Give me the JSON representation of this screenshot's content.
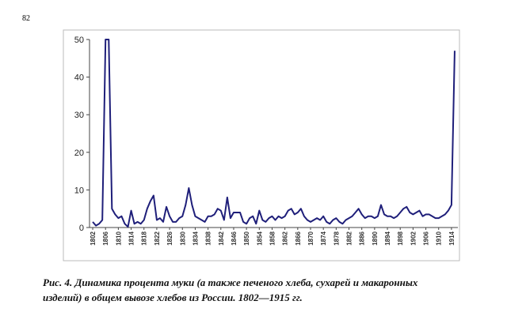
{
  "page_number": "82",
  "caption": [
    "Рис. 4. Динамика процента муки (а также печеного хлеба, сухарей и макаронных",
    "изделий) в общем вывозе хлебов из России. 1802—1915 гг."
  ],
  "chart_data": {
    "type": "line",
    "color": "#1f1f7a",
    "x": [
      1802,
      1803,
      1804,
      1805,
      1806,
      1807,
      1808,
      1809,
      1810,
      1811,
      1812,
      1813,
      1814,
      1815,
      1816,
      1817,
      1818,
      1819,
      1820,
      1821,
      1822,
      1823,
      1824,
      1825,
      1826,
      1827,
      1828,
      1829,
      1830,
      1831,
      1832,
      1833,
      1834,
      1835,
      1836,
      1837,
      1838,
      1839,
      1840,
      1841,
      1842,
      1843,
      1844,
      1845,
      1846,
      1847,
      1848,
      1849,
      1850,
      1851,
      1852,
      1853,
      1854,
      1855,
      1856,
      1857,
      1858,
      1859,
      1860,
      1861,
      1862,
      1863,
      1864,
      1865,
      1866,
      1867,
      1868,
      1869,
      1870,
      1871,
      1872,
      1873,
      1874,
      1875,
      1876,
      1877,
      1878,
      1879,
      1880,
      1881,
      1882,
      1883,
      1884,
      1885,
      1886,
      1887,
      1888,
      1889,
      1890,
      1891,
      1892,
      1893,
      1894,
      1895,
      1896,
      1897,
      1898,
      1899,
      1900,
      1901,
      1902,
      1903,
      1904,
      1905,
      1906,
      1907,
      1908,
      1909,
      1910,
      1911,
      1912,
      1913,
      1914,
      1915
    ],
    "values": [
      1.5,
      0.5,
      1,
      2,
      50,
      50,
      5,
      3.5,
      2.5,
      3,
      1,
      0.2,
      4.5,
      1,
      1.5,
      1,
      2,
      5,
      7,
      8.5,
      2,
      2.5,
      1.5,
      5.5,
      3,
      1.5,
      1.5,
      2.5,
      3,
      6,
      10.5,
      6,
      3,
      2.5,
      2,
      1.5,
      3,
      3,
      3.5,
      5,
      4.5,
      2,
      8,
      2.5,
      4,
      4,
      4,
      1.5,
      1,
      2.5,
      3,
      1,
      4.5,
      2,
      1.5,
      2.5,
      3,
      2,
      3,
      2.5,
      3,
      4.5,
      5,
      3.5,
      4,
      5,
      3,
      2,
      1.5,
      2,
      2.5,
      2,
      3,
      1.5,
      1,
      2,
      2.5,
      1.5,
      1,
      2,
      2.5,
      3,
      4,
      5,
      3.5,
      2.5,
      3,
      3,
      2.5,
      3,
      6,
      3.5,
      3,
      3,
      2.5,
      3,
      4,
      5,
      5.5,
      4,
      3.5,
      4,
      4.5,
      3,
      3.5,
      3.5,
      3,
      2.5,
      2.5,
      3,
      3.5,
      4.5,
      6,
      47
    ],
    "xlim": [
      1801,
      1916
    ],
    "xticks": [
      1802,
      1806,
      1810,
      1814,
      1818,
      1822,
      1826,
      1830,
      1834,
      1838,
      1842,
      1846,
      1850,
      1854,
      1858,
      1862,
      1866,
      1870,
      1874,
      1878,
      1882,
      1886,
      1890,
      1894,
      1898,
      1902,
      1906,
      1910,
      1914
    ],
    "ylim": [
      0,
      50
    ],
    "yticks": [
      0,
      10,
      20,
      30,
      40,
      50
    ],
    "grid": false
  }
}
